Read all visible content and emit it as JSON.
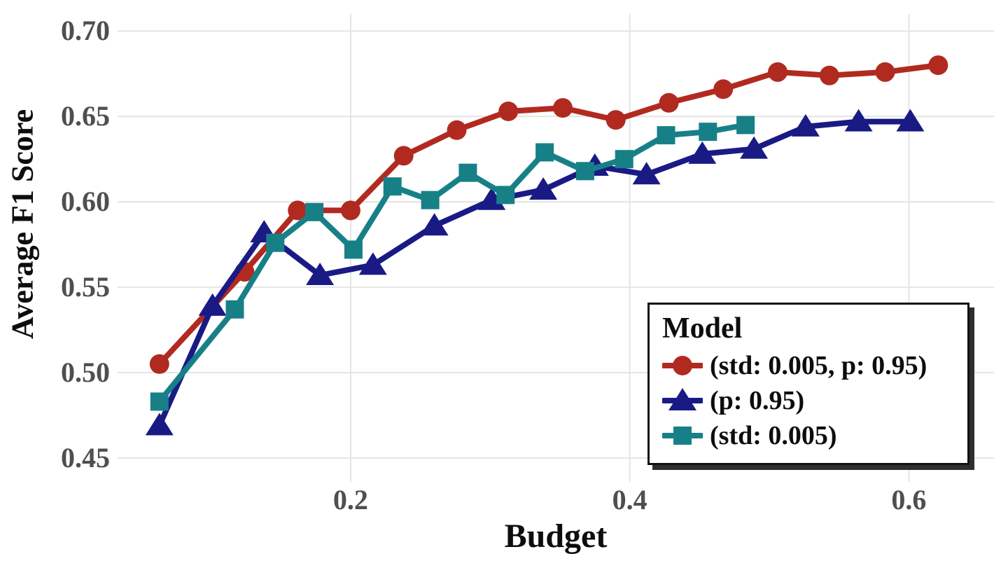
{
  "figure": {
    "background": "#ffffff"
  },
  "chart_data": {
    "type": "line",
    "title": "",
    "xlabel": "Budget",
    "ylabel": "Average F1 Score",
    "xlim": [
      0.033,
      0.661
    ],
    "ylim": [
      0.436,
      0.71
    ],
    "grid": true,
    "xticks": {
      "values": [
        0.2,
        0.4,
        0.6
      ],
      "labels": [
        "0.2",
        "0.4",
        "0.6"
      ]
    },
    "yticks": {
      "values": [
        0.45,
        0.5,
        0.55,
        0.6,
        0.65,
        0.7
      ],
      "labels": [
        "0.45",
        "0.50",
        "0.55",
        "0.60",
        "0.65",
        "0.70"
      ]
    },
    "legend": {
      "title": "Model",
      "position": "lower right",
      "border": true,
      "shadow": true
    },
    "series": [
      {
        "name": "(std: 0.005, p: 0.95)",
        "color": "#b12a20",
        "marker": "circle",
        "x": [
          0.063,
          0.124,
          0.162,
          0.2,
          0.238,
          0.276,
          0.313,
          0.352,
          0.39,
          0.428,
          0.467,
          0.506,
          0.543,
          0.583,
          0.621
        ],
        "y": [
          0.505,
          0.559,
          0.595,
          0.595,
          0.627,
          0.642,
          0.653,
          0.655,
          0.648,
          0.658,
          0.666,
          0.676,
          0.674,
          0.676,
          0.68
        ]
      },
      {
        "name": "(p: 0.95)",
        "color": "#1a1a85",
        "marker": "triangle-up",
        "x": [
          0.063,
          0.101,
          0.138,
          0.178,
          0.216,
          0.26,
          0.301,
          0.338,
          0.375,
          0.412,
          0.452,
          0.489,
          0.526,
          0.564,
          0.601
        ],
        "y": [
          0.469,
          0.539,
          0.582,
          0.557,
          0.563,
          0.586,
          0.601,
          0.607,
          0.621,
          0.616,
          0.628,
          0.631,
          0.644,
          0.647,
          0.647
        ]
      },
      {
        "name": "(std: 0.005)",
        "color": "#178087",
        "marker": "square",
        "x": [
          0.063,
          0.117,
          0.146,
          0.174,
          0.202,
          0.23,
          0.257,
          0.284,
          0.311,
          0.339,
          0.368,
          0.396,
          0.426,
          0.456,
          0.483
        ],
        "y": [
          0.483,
          0.537,
          0.576,
          0.594,
          0.572,
          0.609,
          0.601,
          0.617,
          0.604,
          0.629,
          0.618,
          0.625,
          0.639,
          0.641,
          0.645
        ]
      }
    ],
    "colors": {
      "grid": "#e4e4e4",
      "tick_label": "#4f4f4f",
      "axis_label": "#0d0d0d",
      "legend_border": "#111111",
      "legend_shadow": "#2e2e2e"
    }
  }
}
